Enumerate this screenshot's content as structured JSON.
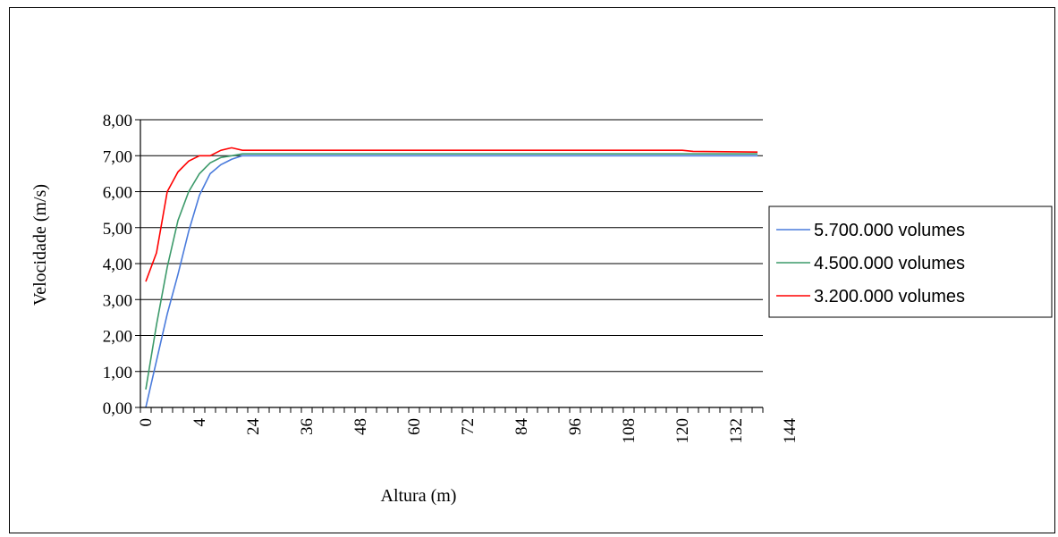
{
  "chart_data": {
    "type": "line",
    "title": "",
    "xlabel": "Altura (m)",
    "ylabel": "Velocidade (m/s)",
    "ylim": [
      0,
      8
    ],
    "y_ticks": [
      "0,00",
      "1,00",
      "2,00",
      "3,00",
      "4,00",
      "5,00",
      "6,00",
      "7,00",
      "8,00"
    ],
    "categories": [
      "0",
      "4",
      "24",
      "36",
      "48",
      "60",
      "72",
      "84",
      "96",
      "108",
      "120",
      "132",
      "144"
    ],
    "category_count": 58,
    "grid": true,
    "legend_position": "right",
    "series": [
      {
        "name": "5.700.000 volumes",
        "color": "#4a7bdc",
        "points": [
          [
            0,
            0
          ],
          [
            1,
            1.3
          ],
          [
            2,
            2.6
          ],
          [
            3,
            3.7
          ],
          [
            4,
            4.9
          ],
          [
            5,
            5.9
          ],
          [
            6,
            6.5
          ],
          [
            7,
            6.75
          ],
          [
            8,
            6.9
          ],
          [
            9,
            7.0
          ],
          [
            20,
            7.0
          ],
          [
            40,
            7.0
          ],
          [
            57,
            7.0
          ]
        ]
      },
      {
        "name": "4.500.000 volumes",
        "color": "#3c9a6a",
        "points": [
          [
            0,
            0.5
          ],
          [
            1,
            2.3
          ],
          [
            2,
            3.9
          ],
          [
            3,
            5.2
          ],
          [
            4,
            6.0
          ],
          [
            5,
            6.5
          ],
          [
            6,
            6.8
          ],
          [
            7,
            6.95
          ],
          [
            8,
            7.0
          ],
          [
            9,
            7.05
          ],
          [
            20,
            7.05
          ],
          [
            40,
            7.05
          ],
          [
            57,
            7.05
          ]
        ]
      },
      {
        "name": "3.200.000 volumes",
        "color": "#ff0000",
        "points": [
          [
            0,
            3.5
          ],
          [
            1,
            4.3
          ],
          [
            2,
            6.0
          ],
          [
            3,
            6.55
          ],
          [
            4,
            6.85
          ],
          [
            5,
            7.0
          ],
          [
            6,
            7.0
          ],
          [
            7,
            7.15
          ],
          [
            8,
            7.22
          ],
          [
            9,
            7.15
          ],
          [
            20,
            7.15
          ],
          [
            40,
            7.15
          ],
          [
            50,
            7.15
          ],
          [
            51,
            7.12
          ],
          [
            57,
            7.1
          ]
        ]
      }
    ]
  }
}
